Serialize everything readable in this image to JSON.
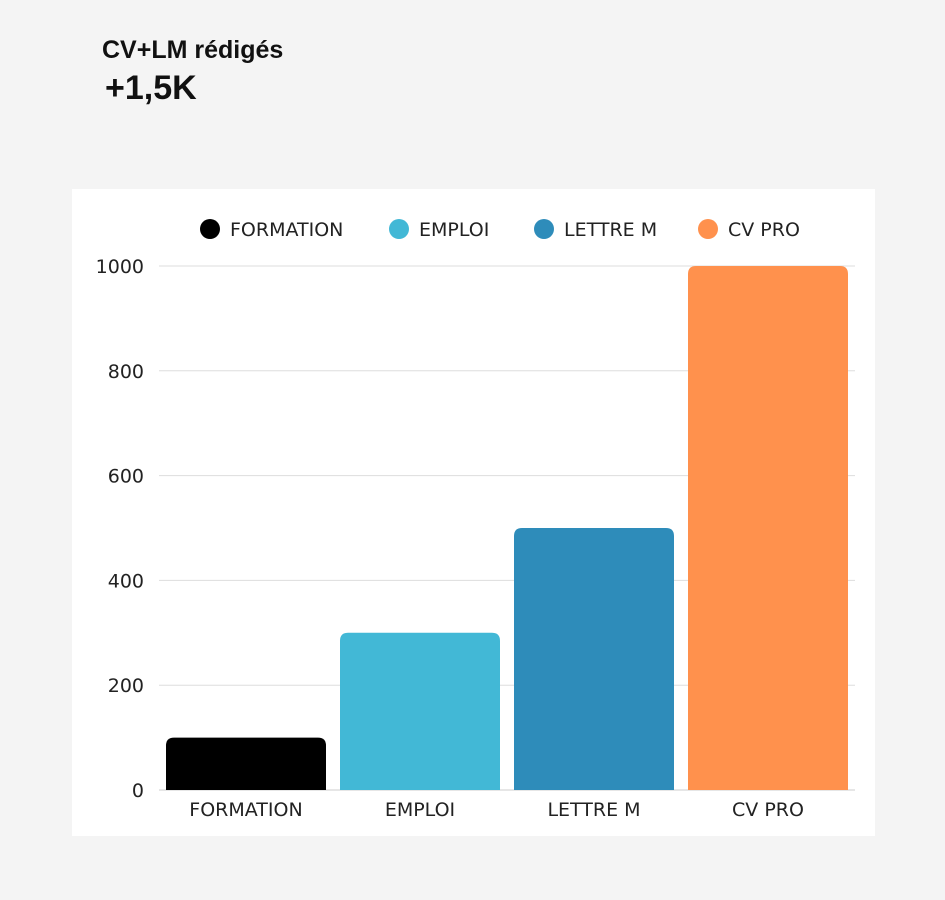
{
  "header": {
    "title": "CV+LM rédigés",
    "kpi": "+1,5K"
  },
  "chart_data": {
    "type": "bar",
    "categories": [
      "FORMATION",
      "EMPLOI",
      "LETTRE M",
      "CV PRO"
    ],
    "values": [
      100,
      300,
      500,
      1000
    ],
    "colors": [
      "#000000",
      "#42b8d6",
      "#2e8cba",
      "#ff914d"
    ],
    "legend": [
      "FORMATION",
      "EMPLOI",
      "LETTRE M",
      "CV PRO"
    ],
    "legend_position": "top",
    "yticks": [
      "0",
      "200",
      "400",
      "600",
      "800",
      "1000"
    ],
    "ylim": [
      0,
      1000
    ],
    "grid": true,
    "title": "",
    "xlabel": "",
    "ylabel": ""
  }
}
